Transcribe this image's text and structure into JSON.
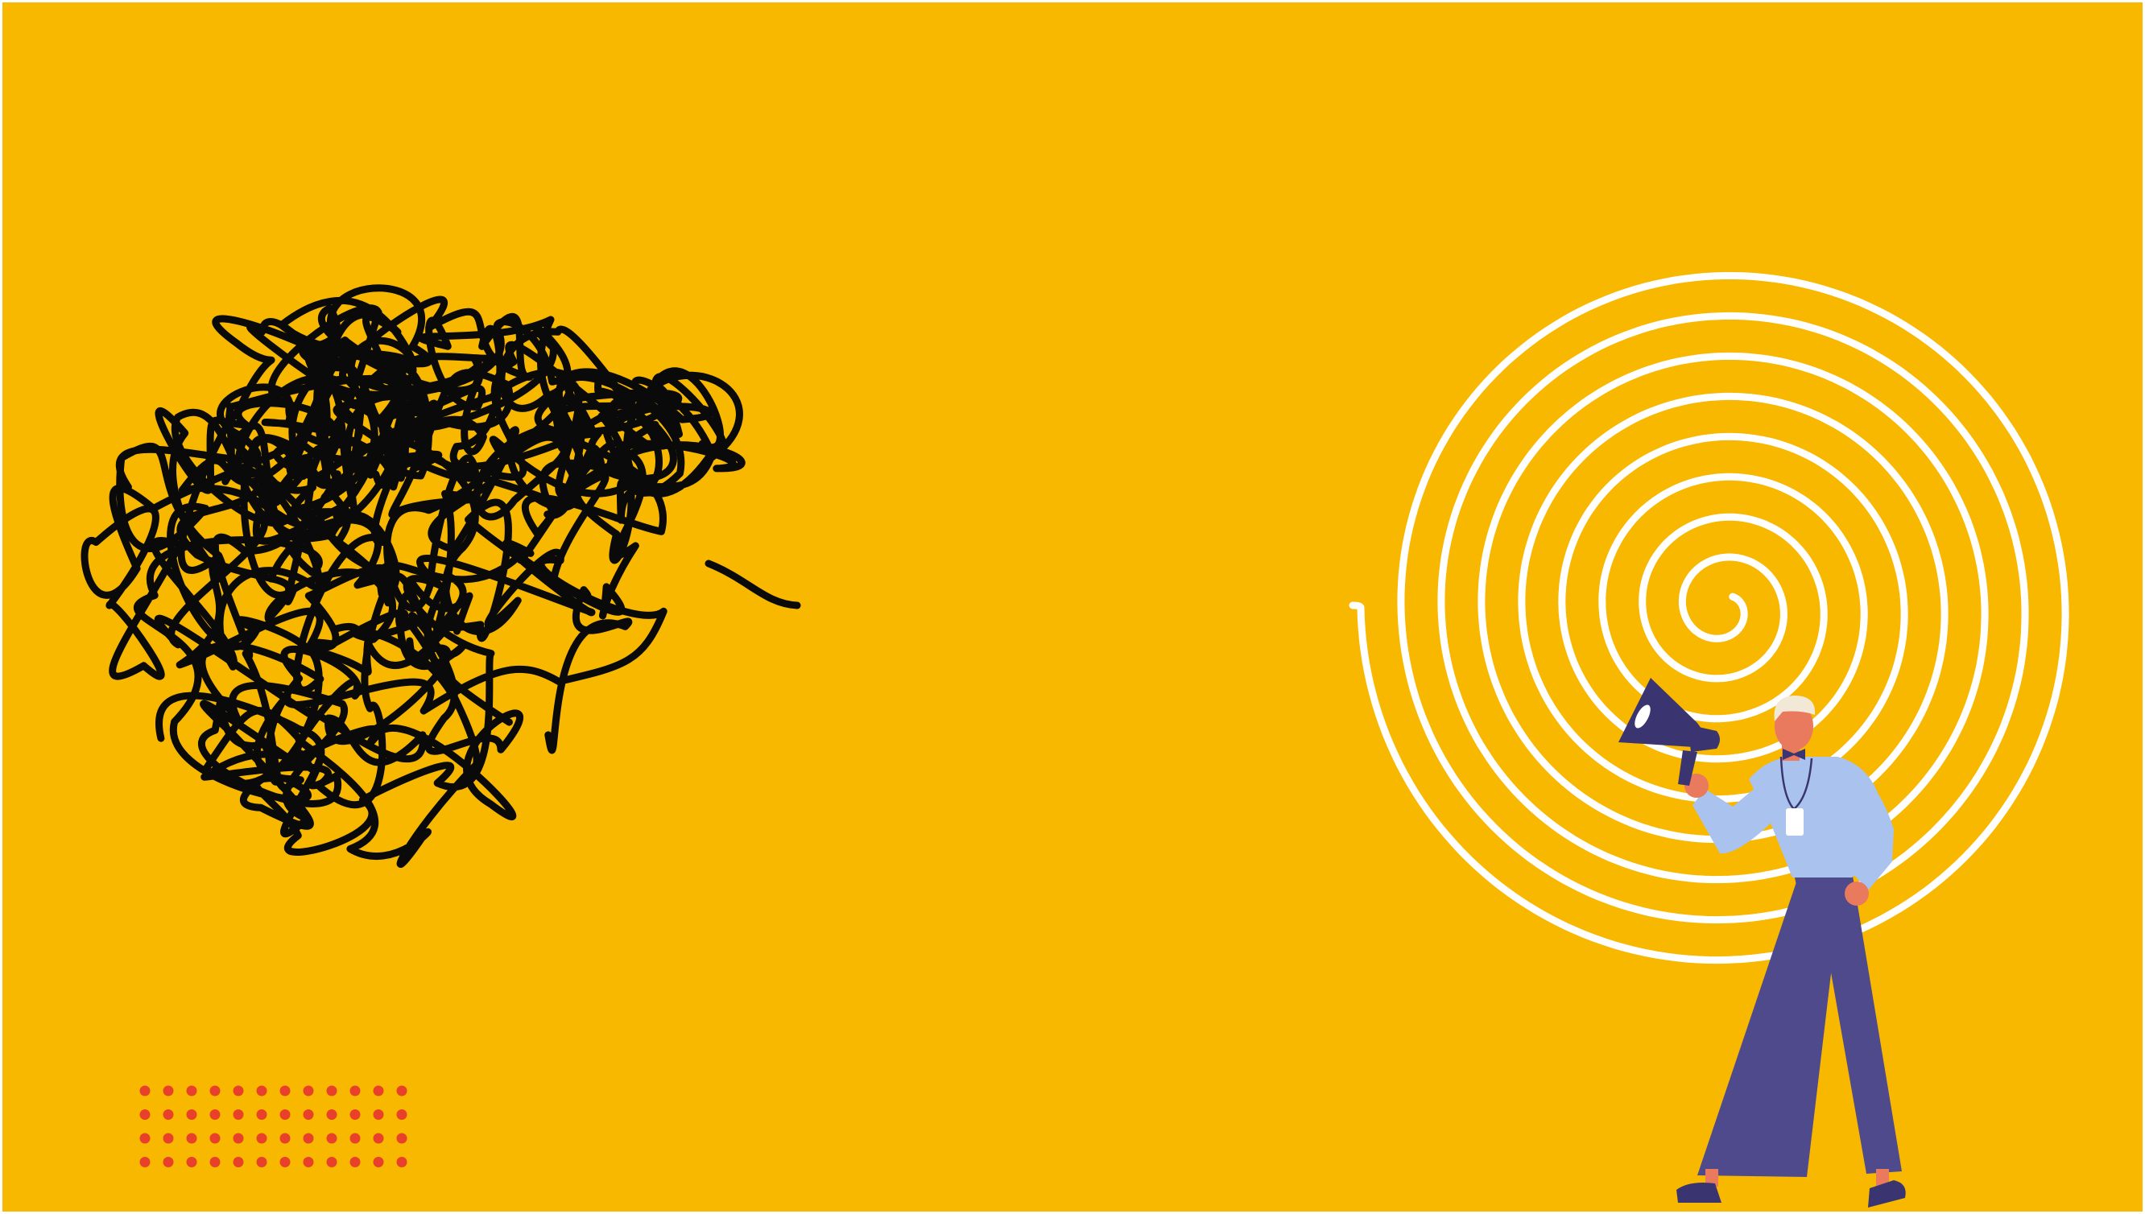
{
  "illustration": {
    "background_color": "#F8B800",
    "frame_color": "#FFFFFF",
    "tangle_color": "#0A0A0A",
    "spiral_color": "#FFFFFF",
    "dot_color": "#E8402A",
    "dot_grid": {
      "rows": 4,
      "cols": 12
    },
    "person": {
      "skin_color": "#E97A5E",
      "hair_color": "#F1E8D6",
      "shirt_color": "#A9C3EE",
      "trousers_color": "#4F4A8C",
      "megaphone_color": "#3A3570",
      "bowtie_color": "#3A3570",
      "shoe_color": "#3A3570",
      "badge_color": "#FFFFFF"
    }
  }
}
